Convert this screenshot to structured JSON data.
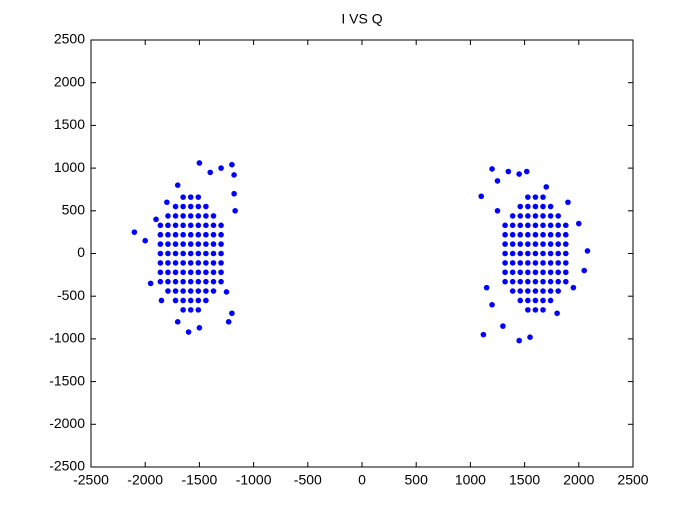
{
  "chart_data": {
    "type": "scatter",
    "title": "I VS Q",
    "color": "#0000ff",
    "xlim": [
      -2500,
      2500
    ],
    "ylim": [
      -2500,
      2500
    ],
    "xticks": [
      -2500,
      -2000,
      -1500,
      -1000,
      -500,
      0,
      500,
      1000,
      1500,
      2000,
      2500
    ],
    "yticks": [
      -2500,
      -2000,
      -1500,
      -1000,
      -500,
      0,
      500,
      1000,
      1500,
      2000,
      2500
    ],
    "x": [
      -1650,
      -1580,
      -1510,
      -1720,
      -1650,
      -1580,
      -1510,
      -1440,
      -1790,
      -1720,
      -1650,
      -1580,
      -1510,
      -1440,
      -1370,
      -1860,
      -1790,
      -1720,
      -1650,
      -1580,
      -1510,
      -1440,
      -1370,
      -1300,
      -1860,
      -1790,
      -1720,
      -1650,
      -1580,
      -1510,
      -1440,
      -1370,
      -1300,
      -1860,
      -1790,
      -1720,
      -1650,
      -1580,
      -1510,
      -1440,
      -1370,
      -1300,
      -1860,
      -1790,
      -1720,
      -1650,
      -1580,
      -1510,
      -1440,
      -1370,
      -1300,
      -1860,
      -1790,
      -1720,
      -1650,
      -1580,
      -1510,
      -1440,
      -1370,
      -1300,
      -1860,
      -1790,
      -1720,
      -1650,
      -1580,
      -1510,
      -1440,
      -1370,
      -1300,
      -1860,
      -1790,
      -1720,
      -1650,
      -1580,
      -1510,
      -1440,
      -1370,
      -1300,
      -1790,
      -1720,
      -1650,
      -1580,
      -1510,
      -1440,
      -1370,
      -1720,
      -1650,
      -1580,
      -1510,
      -1440,
      -1650,
      -1580,
      -1510,
      -2100,
      -1500,
      -1200,
      -1180,
      -1600,
      -1200,
      -1250,
      -1950,
      -2000,
      -1300,
      -1400,
      -1700,
      -1800,
      -1900,
      -1180,
      -1170,
      -1230,
      -1500,
      -1700,
      -1850,
      1530,
      1600,
      1670,
      1460,
      1530,
      1600,
      1670,
      1740,
      1390,
      1460,
      1530,
      1600,
      1670,
      1740,
      1810,
      1320,
      1390,
      1460,
      1530,
      1600,
      1670,
      1740,
      1810,
      1880,
      1320,
      1390,
      1460,
      1530,
      1600,
      1670,
      1740,
      1810,
      1880,
      1320,
      1390,
      1460,
      1530,
      1600,
      1670,
      1740,
      1810,
      1880,
      1320,
      1390,
      1460,
      1530,
      1600,
      1670,
      1740,
      1810,
      1880,
      1320,
      1390,
      1460,
      1530,
      1600,
      1670,
      1740,
      1810,
      1880,
      1320,
      1390,
      1460,
      1530,
      1600,
      1670,
      1740,
      1810,
      1880,
      1320,
      1390,
      1460,
      1530,
      1600,
      1670,
      1740,
      1810,
      1880,
      1390,
      1460,
      1530,
      1600,
      1670,
      1740,
      1810,
      1460,
      1530,
      1600,
      1670,
      1740,
      1530,
      1600,
      1670,
      1100,
      1120,
      1200,
      1250,
      1350,
      1450,
      1520,
      1900,
      2080,
      2000,
      1450,
      1550,
      1800,
      1950,
      1150,
      1200,
      1250,
      2050,
      1700,
      1300
    ],
    "values": [
      660,
      660,
      660,
      550,
      550,
      550,
      550,
      550,
      440,
      440,
      440,
      440,
      440,
      440,
      440,
      330,
      330,
      330,
      330,
      330,
      330,
      330,
      330,
      330,
      220,
      220,
      220,
      220,
      220,
      220,
      220,
      220,
      220,
      110,
      110,
      110,
      110,
      110,
      110,
      110,
      110,
      110,
      0,
      0,
      0,
      0,
      0,
      0,
      0,
      0,
      0,
      -110,
      -110,
      -110,
      -110,
      -110,
      -110,
      -110,
      -110,
      -110,
      -220,
      -220,
      -220,
      -220,
      -220,
      -220,
      -220,
      -220,
      -220,
      -330,
      -330,
      -330,
      -330,
      -330,
      -330,
      -330,
      -330,
      -330,
      -440,
      -440,
      -440,
      -440,
      -440,
      -440,
      -440,
      -550,
      -550,
      -550,
      -550,
      -550,
      -660,
      -660,
      -660,
      250,
      1060,
      1040,
      920,
      -920,
      -700,
      -450,
      -350,
      150,
      1000,
      950,
      800,
      600,
      400,
      700,
      500,
      -800,
      -870,
      -800,
      -550,
      660,
      660,
      660,
      550,
      550,
      550,
      550,
      550,
      440,
      440,
      440,
      440,
      440,
      440,
      440,
      330,
      330,
      330,
      330,
      330,
      330,
      330,
      330,
      330,
      220,
      220,
      220,
      220,
      220,
      220,
      220,
      220,
      220,
      110,
      110,
      110,
      110,
      110,
      110,
      110,
      110,
      110,
      0,
      0,
      0,
      0,
      0,
      0,
      0,
      0,
      0,
      -110,
      -110,
      -110,
      -110,
      -110,
      -110,
      -110,
      -110,
      -110,
      -220,
      -220,
      -220,
      -220,
      -220,
      -220,
      -220,
      -220,
      -220,
      -330,
      -330,
      -330,
      -330,
      -330,
      -330,
      -330,
      -330,
      -330,
      -440,
      -440,
      -440,
      -440,
      -440,
      -440,
      -440,
      -550,
      -550,
      -550,
      -550,
      -550,
      -660,
      -660,
      -660,
      670,
      -950,
      990,
      850,
      960,
      930,
      960,
      600,
      30,
      350,
      -1020,
      -980,
      -700,
      -400,
      -400,
      -600,
      500,
      -200,
      780,
      -850
    ]
  }
}
